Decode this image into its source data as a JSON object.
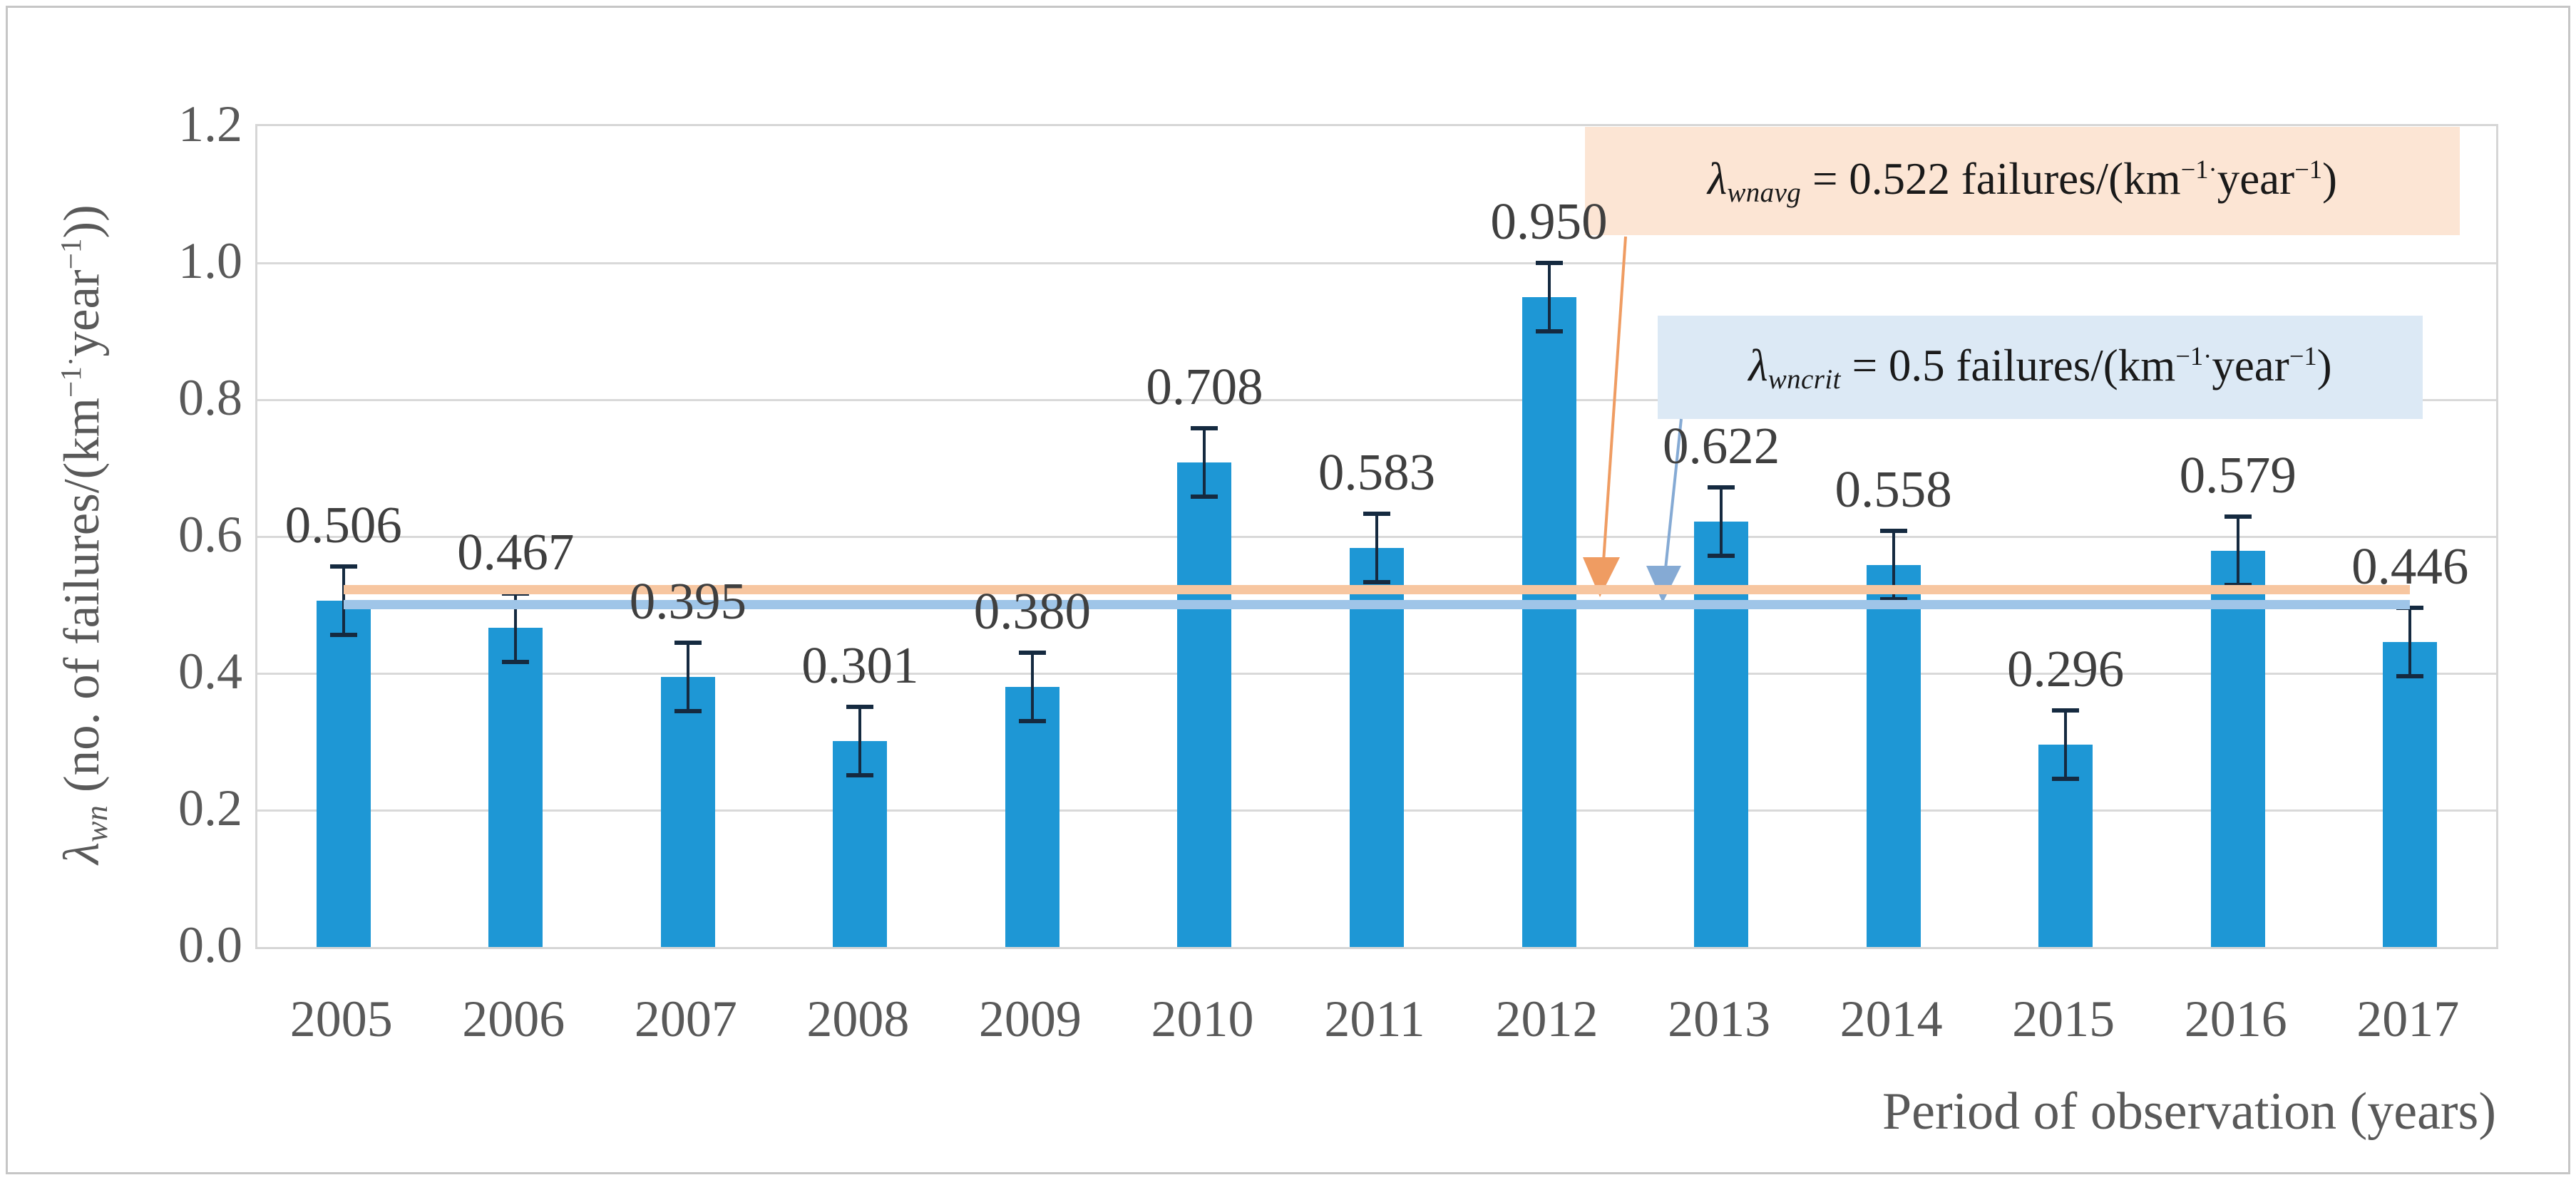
{
  "figure": {
    "background": "#ffffff",
    "border_color": "#c6c6c6"
  },
  "chart_data": {
    "type": "bar",
    "title": "",
    "categories": [
      "2005",
      "2006",
      "2007",
      "2008",
      "2009",
      "2010",
      "2011",
      "2012",
      "2013",
      "2014",
      "2015",
      "2016",
      "2017"
    ],
    "values": [
      0.506,
      0.467,
      0.395,
      0.301,
      0.38,
      0.708,
      0.583,
      0.95,
      0.622,
      0.558,
      0.296,
      0.579,
      0.446
    ],
    "value_labels": [
      "0.506",
      "0.467",
      "0.395",
      "0.301",
      "0.380",
      "0.708",
      "0.583",
      "0.950",
      "0.622",
      "0.558",
      "0.296",
      "0.579",
      "0.446"
    ],
    "error_bar": 0.05,
    "ylim": [
      0,
      1.2
    ],
    "yticks": [
      "0.0",
      "0.2",
      "0.4",
      "0.6",
      "0.8",
      "1.0",
      "1.2"
    ],
    "grid": true,
    "legend": "none",
    "xlabel": "Period of observation (years)",
    "ylabel": {
      "sym": "λ",
      "sub": "wn",
      "mid": " (no. of failures/(km",
      "sup1": "−1·",
      "mid2": "year",
      "sup2": "−1",
      "close": "))"
    },
    "bar_color": "#1e97d5",
    "error_color": "#152a40",
    "grid_color": "#d9d9d9",
    "tick_color": "#595959",
    "value_label_color": "#3f3f3f",
    "ref_lines": [
      {
        "name": "average",
        "value": 0.522,
        "line_color": "#f7c6a0",
        "box_fill": "#fce5d4",
        "arrow_color": "#ef9c62",
        "label": {
          "sym": "λ",
          "sub": "wnavg",
          "mid": " = 0.522 failures/(km",
          "sup1": "−1·",
          "mid2": "year",
          "sup2": "−1",
          "close": ")"
        }
      },
      {
        "name": "critical",
        "value": 0.5,
        "line_color": "#9fc5e8",
        "box_fill": "#dcE9f5",
        "arrow_color": "#85aad4",
        "label": {
          "sym": "λ",
          "sub": "wncrit",
          "mid": " = 0.5 failures/(km",
          "sup1": "−1·",
          "mid2": "year",
          "sup2": "−1",
          "close": ")"
        }
      }
    ]
  }
}
